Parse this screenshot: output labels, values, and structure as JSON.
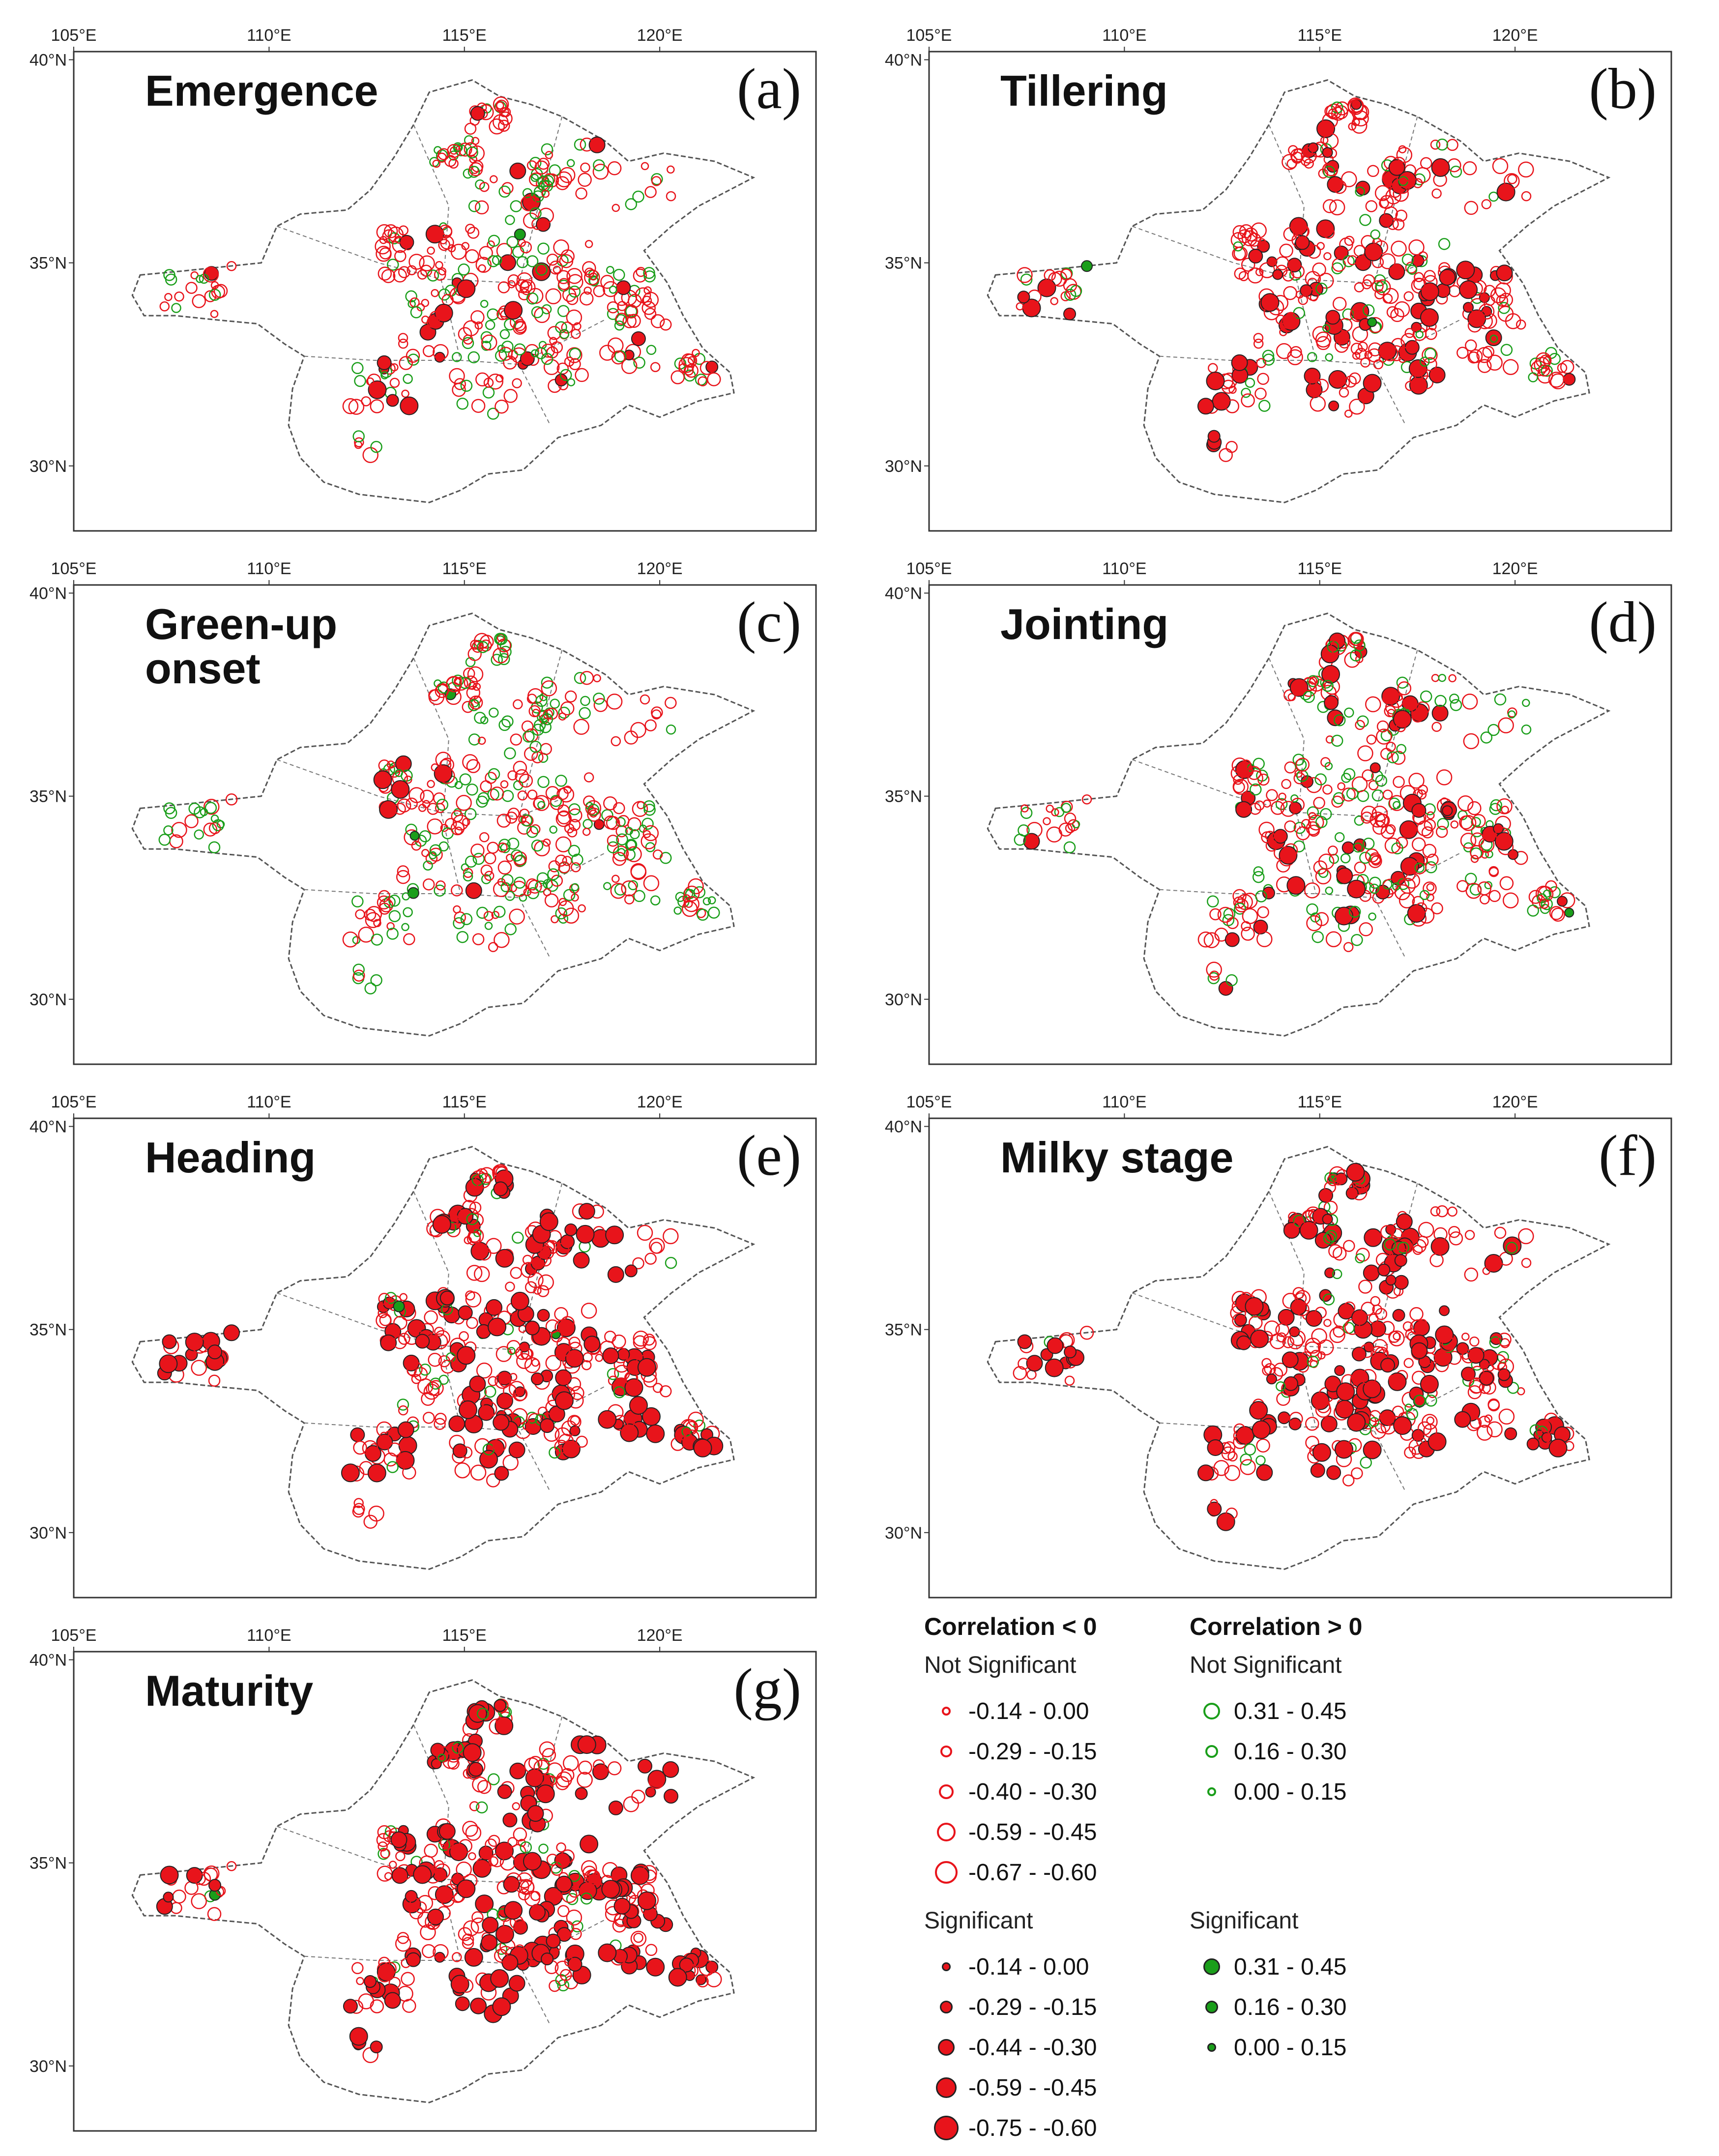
{
  "colors": {
    "negative": "#e8141b",
    "positive": "#1a9e1a",
    "outline": "#222222"
  },
  "axes": {
    "lon_ticks": [
      "105°E",
      "110°E",
      "115°E",
      "120°E"
    ],
    "lat_ticks": [
      "40°N",
      "35°N",
      "30°N"
    ],
    "lon_range": [
      105,
      124
    ],
    "lat_range": [
      28.4,
      40.2
    ]
  },
  "panels": [
    {
      "id": "a",
      "stage": "Emergence",
      "label": "(a)",
      "pos_share": 0.32,
      "sig_share": 0.1,
      "size_bias": 0.3,
      "seed": 11
    },
    {
      "id": "b",
      "stage": "Tillering",
      "label": "(b)",
      "pos_share": 0.14,
      "sig_share": 0.22,
      "size_bias": 0.45,
      "seed": 23
    },
    {
      "id": "c",
      "stage": "Green-up",
      "stage_line2": "onset",
      "label": "(c)",
      "pos_share": 0.42,
      "sig_share": 0.05,
      "size_bias": 0.2,
      "seed": 37
    },
    {
      "id": "d",
      "stage": "Jointing",
      "label": "(d)",
      "pos_share": 0.3,
      "sig_share": 0.18,
      "size_bias": 0.35,
      "seed": 41
    },
    {
      "id": "e",
      "stage": "Heading",
      "label": "(e)",
      "pos_share": 0.09,
      "sig_share": 0.42,
      "size_bias": 0.7,
      "seed": 53
    },
    {
      "id": "f",
      "stage": "Milky stage",
      "label": "(f)",
      "pos_share": 0.1,
      "sig_share": 0.4,
      "size_bias": 0.55,
      "seed": 67
    },
    {
      "id": "g",
      "stage": "Maturity",
      "label": "(g)",
      "pos_share": 0.06,
      "sig_share": 0.45,
      "size_bias": 0.65,
      "seed": 79
    }
  ],
  "legend": {
    "neg_title": "Correlation < 0",
    "pos_title": "Correlation > 0",
    "not_sig": "Not Significant",
    "sig": "Significant",
    "neg_not_sig": [
      "-0.14 - 0.00",
      "-0.29 - -0.15",
      "-0.40 - -0.30",
      "-0.59 - -0.45",
      "-0.67 - -0.60"
    ],
    "neg_sig": [
      "-0.14 - 0.00",
      "-0.29 - -0.15",
      "-0.44 - -0.30",
      "-0.59 - -0.45",
      "-0.75 - -0.60"
    ],
    "pos_not_sig": [
      "0.31 - 0.45",
      "0.16 - 0.30",
      "0.00 - 0.15"
    ],
    "pos_sig": [
      "0.31 - 0.45",
      "0.16 - 0.30",
      "0.00 - 0.15"
    ]
  }
}
